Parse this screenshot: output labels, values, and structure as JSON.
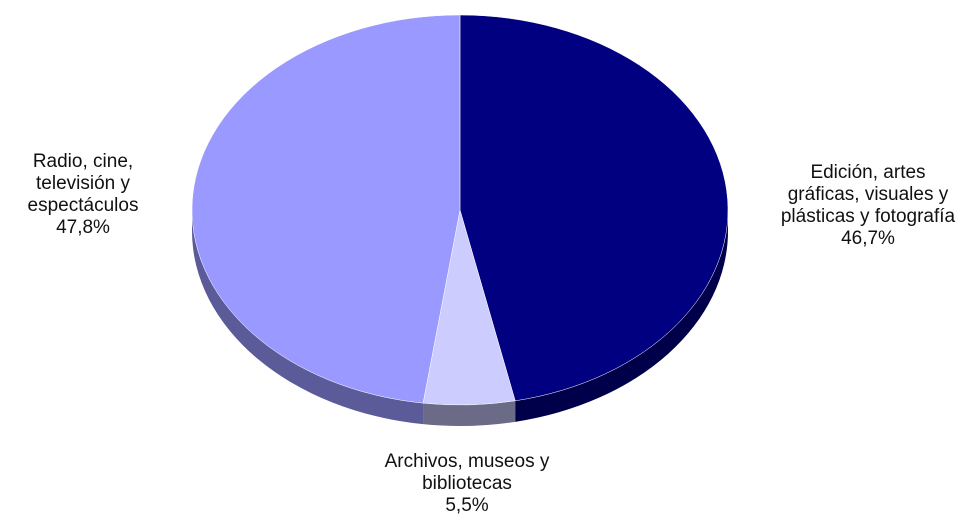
{
  "chart_data": {
    "type": "pie",
    "style": "3d",
    "title": "",
    "slices": [
      {
        "label_lines": [
          "Edición, artes",
          "gráficas, visuales y",
          "plásticas y fotografía"
        ],
        "value_text": "46,7%",
        "value": 46.7,
        "color": "#000080",
        "side_color": "#00004a",
        "label_position": "right"
      },
      {
        "label_lines": [
          "Archivos, museos y",
          "bibliotecas"
        ],
        "value_text": "5,5%",
        "value": 5.5,
        "color": "#ccccff",
        "side_color": "#6b6b88",
        "label_position": "bottom"
      },
      {
        "label_lines": [
          "Radio, cine,",
          "televisión y",
          "espectáculos"
        ],
        "value_text": "47,8%",
        "value": 47.8,
        "color": "#9999ff",
        "side_color": "#5b5b99",
        "label_position": "left"
      }
    ]
  }
}
